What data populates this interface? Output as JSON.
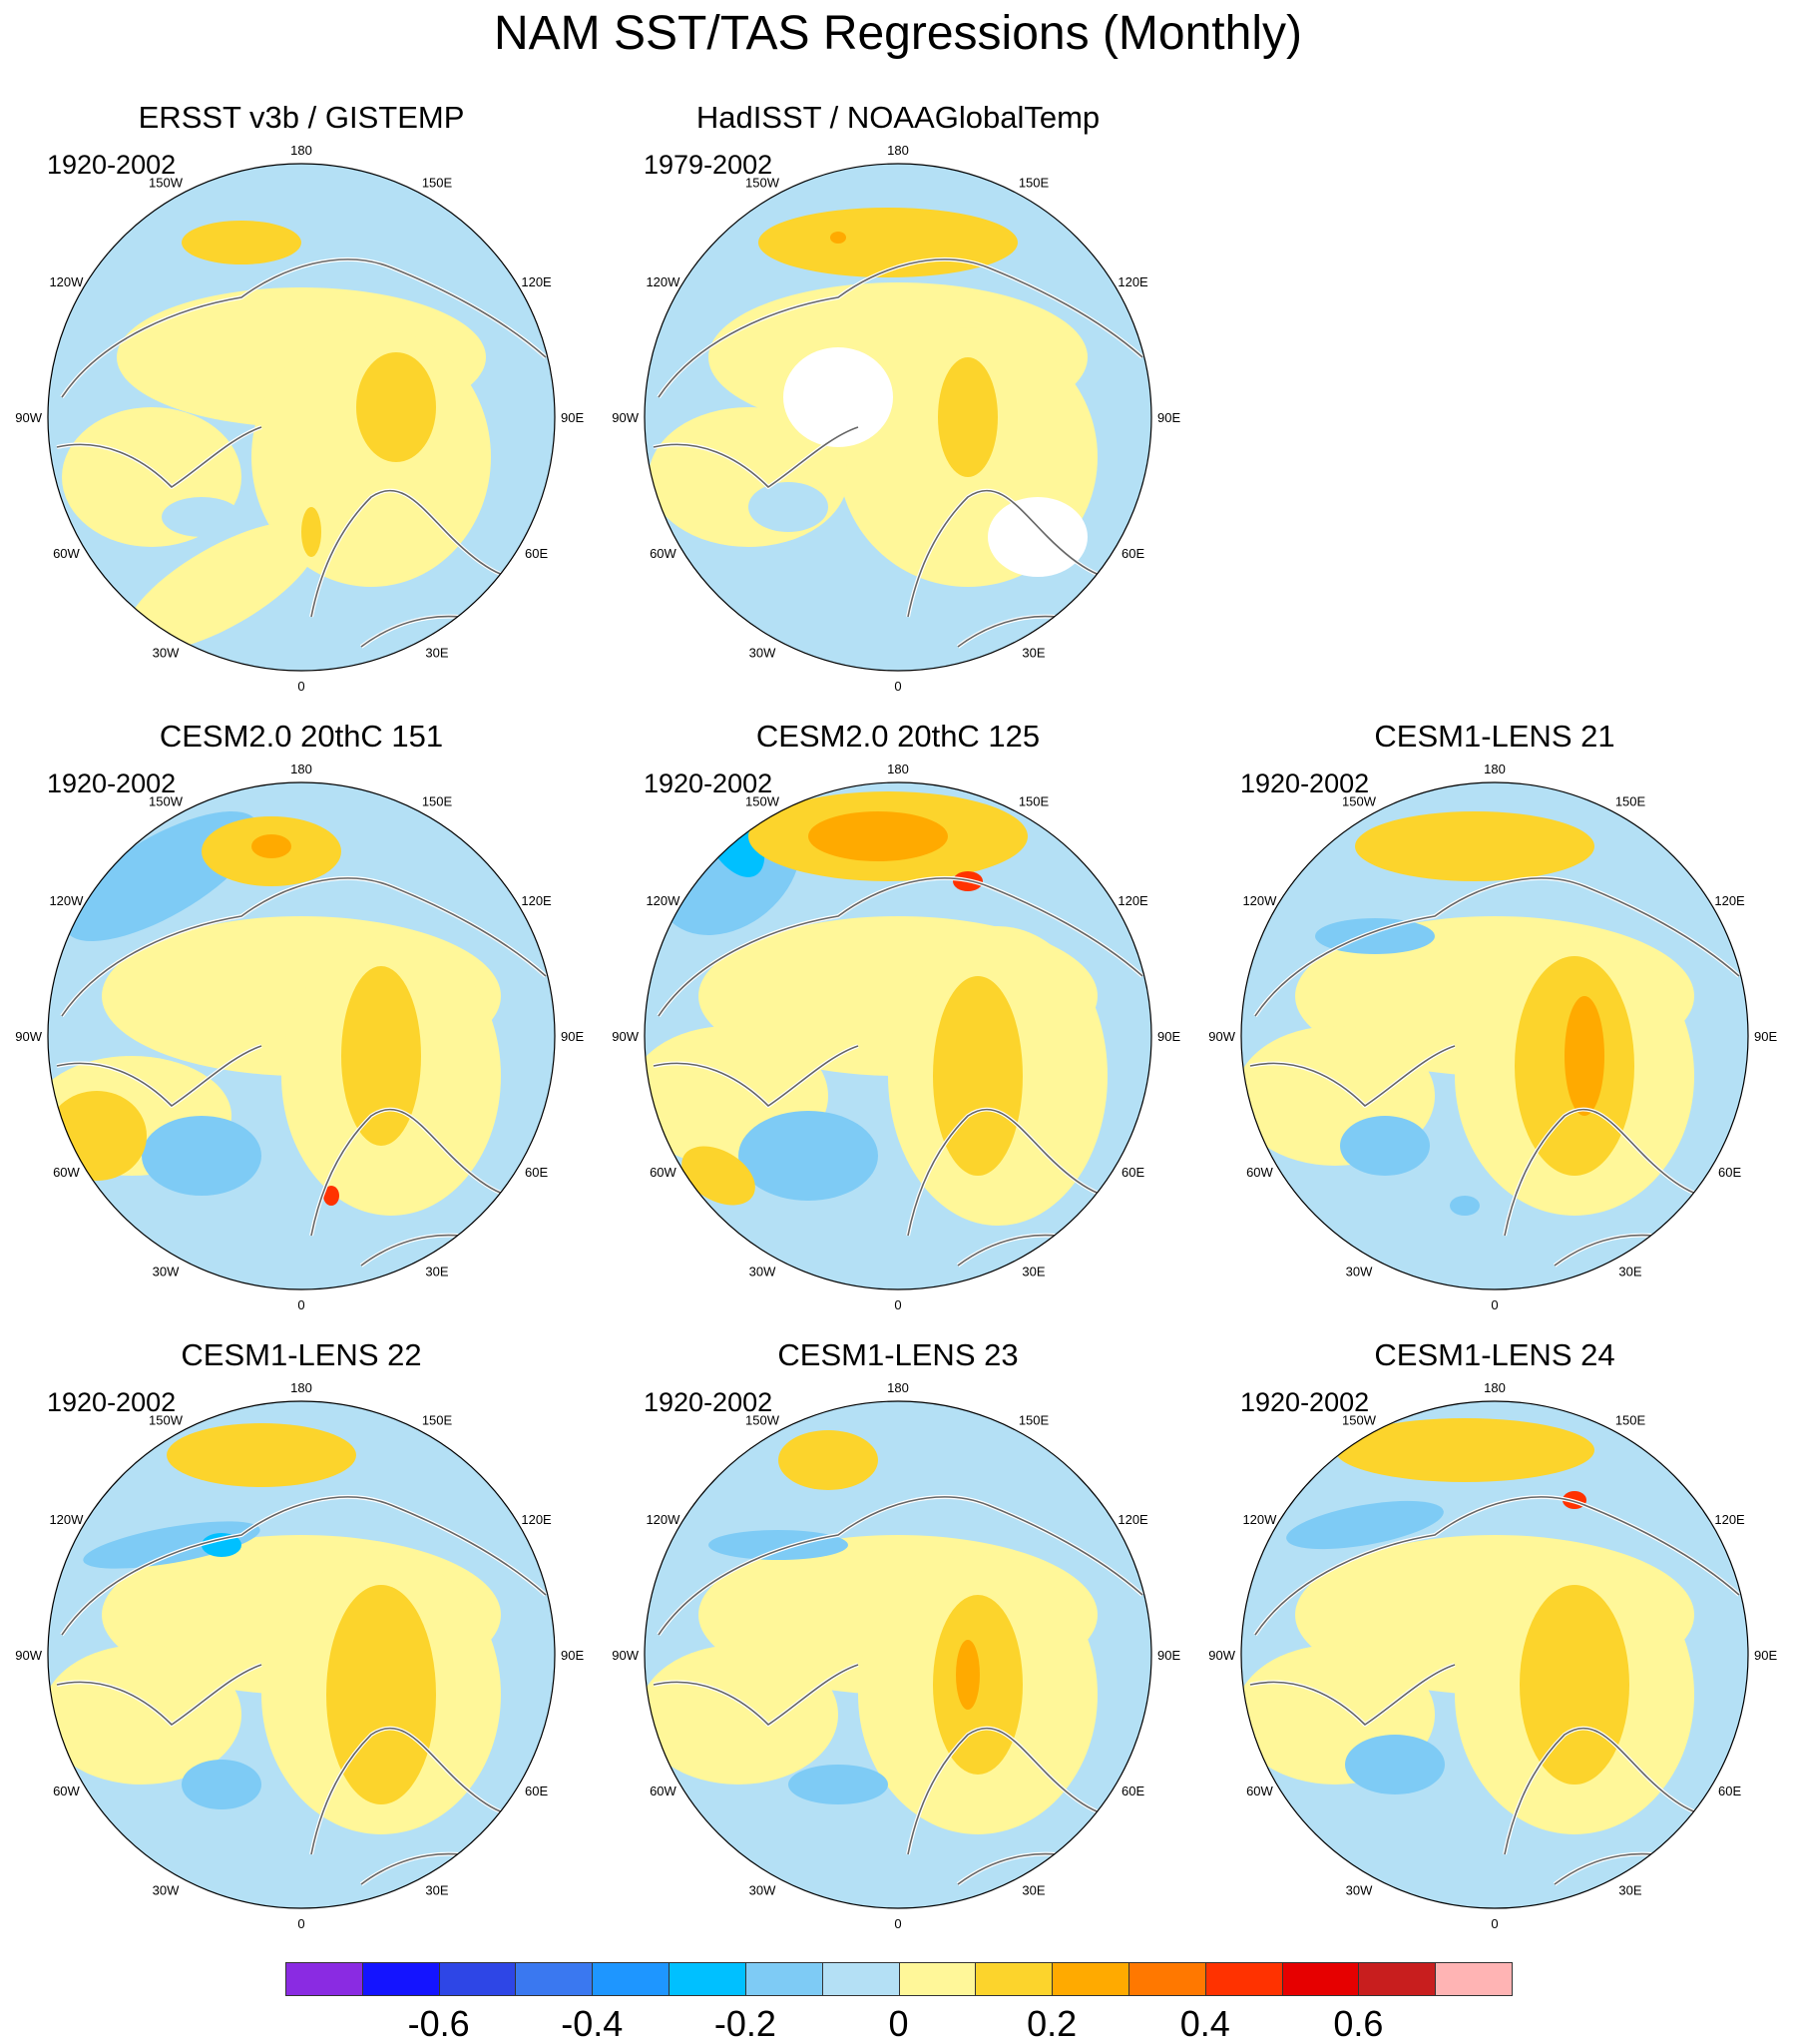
{
  "title": "NAM SST/TAS Regressions (Monthly)",
  "lon_labels": [
    "180",
    "150E",
    "120E",
    "90E",
    "60E",
    "30E",
    "0",
    "30W",
    "60W",
    "90W",
    "120W",
    "150W"
  ],
  "colors": {
    "land_line": "#666666",
    "coast_line": "#ffffff",
    "missing": "#ffffff"
  },
  "panels": [
    {
      "title": "ERSST v3b / GISTEMP",
      "period": "1920-2002",
      "variant": 0
    },
    {
      "title": "HadISST / NOAAGlobalTemp",
      "period": "1979-2002",
      "variant": 1
    },
    {
      "title": "CESM2.0 20thC 151",
      "period": "1920-2002",
      "variant": 2
    },
    {
      "title": "CESM2.0 20thC 125",
      "period": "1920-2002",
      "variant": 3
    },
    {
      "title": "CESM1-LENS 21",
      "period": "1920-2002",
      "variant": 4
    },
    {
      "title": "CESM1-LENS 22",
      "period": "1920-2002",
      "variant": 5
    },
    {
      "title": "CESM1-LENS 23",
      "period": "1920-2002",
      "variant": 6
    },
    {
      "title": "CESM1-LENS 24",
      "period": "1920-2002",
      "variant": 7
    }
  ],
  "colorbar": {
    "colors": [
      "#8a2be2",
      "#1414ff",
      "#2e46e6",
      "#3a78f0",
      "#1e96ff",
      "#00c0ff",
      "#7ecbf5",
      "#b4e0f5",
      "#fff799",
      "#fcd42c",
      "#ffaa00",
      "#ff7800",
      "#ff3200",
      "#e60000",
      "#c81e1e",
      "#ffb4b4"
    ],
    "tick_labels": [
      "-0.6",
      "-0.4",
      "-0.2",
      "0",
      "0.2",
      "0.4",
      "0.6"
    ],
    "tick_values": [
      -0.6,
      -0.4,
      -0.2,
      0,
      0.2,
      0.4,
      0.6
    ],
    "levels": [
      -0.7,
      -0.6,
      -0.5,
      -0.4,
      -0.3,
      -0.2,
      -0.1,
      0,
      0.1,
      0.2,
      0.3,
      0.4,
      0.5,
      0.6,
      0.7
    ]
  }
}
